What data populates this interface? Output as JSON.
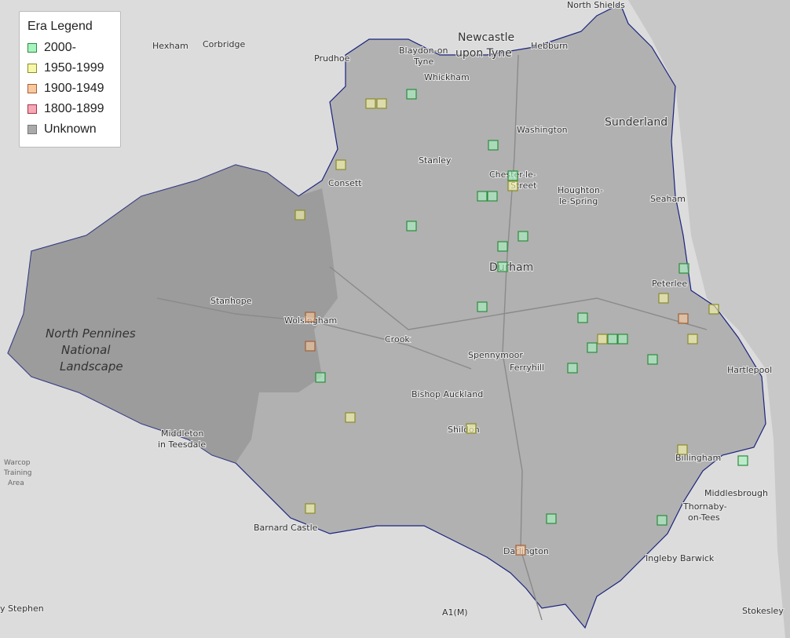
{
  "legend": {
    "title": "Era Legend",
    "items": [
      {
        "label": "2000-",
        "fill": "#a6f5c0",
        "stroke": "#2e8b3e"
      },
      {
        "label": "1950-1999",
        "fill": "#f6f7a8",
        "stroke": "#8c8c2a"
      },
      {
        "label": "1900-1949",
        "fill": "#f9c99d",
        "stroke": "#a0603a"
      },
      {
        "label": "1800-1899",
        "fill": "#f8a8b4",
        "stroke": "#a03848"
      },
      {
        "label": "Unknown",
        "fill": "#aaaaaa",
        "stroke": "#777777"
      }
    ]
  },
  "places": {
    "north_shields": "North Shields",
    "newcastle1": "Newcastle",
    "newcastle2": "upon Tyne",
    "hexham": "Hexham",
    "corbridge": "Corbridge",
    "prudhoe": "Prudhoe",
    "blaydon1": "Blaydon-on",
    "blaydon2": "Tyne",
    "hebburn": "Hebburn",
    "whickham": "Whickham",
    "washington": "Washington",
    "sunderland": "Sunderland",
    "stanley": "Stanley",
    "consett": "Consett",
    "chester1": "Chester-le-",
    "chester2": "Street",
    "houghton1": "Houghton-",
    "houghton2": "le-Spring",
    "seaham": "Seaham",
    "durham": "Durham",
    "peterlee": "Peterlee",
    "stanhope": "Stanhope",
    "wolsingham": "Wolsingham",
    "crook": "Crook",
    "spennymoor": "Spennymoor",
    "ferryhill": "Ferryhill",
    "hartlepool": "Hartlepool",
    "bishop": "Bishop Auckland",
    "shildon": "Shildon",
    "middleton1": "Middleton",
    "middleton2": "in Teesdale",
    "billingham": "Billingham",
    "middlesbrough": "Middlesbrough",
    "barnard": "Barnard Castle",
    "darlington": "Darlington",
    "thornaby1": "Thornaby-",
    "thornaby2": "on-Tees",
    "ingleby": "Ingleby Barwick",
    "stokesley": "Stokesley",
    "stephen": "y Stephen",
    "warcop1": "Warcop",
    "warcop2": "Training",
    "warcop3": "Area",
    "road": "A1(M)",
    "np1": "North Pennines",
    "np2": "National",
    "np3": "Landscape"
  }
}
